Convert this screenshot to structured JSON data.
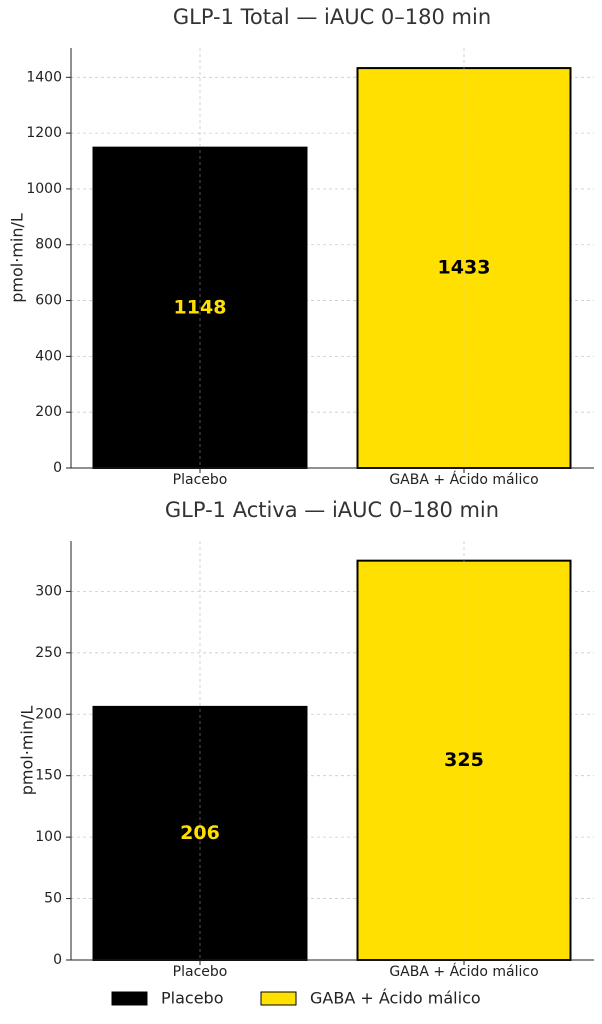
{
  "chart_data": [
    {
      "type": "bar",
      "title": "GLP-1 Total — iAUC 0–180 min",
      "y_label": "pmol·min/L",
      "categories": [
        "Placebo",
        "GABA + Ácido málico"
      ],
      "values": [
        1148,
        1433
      ],
      "colors": [
        "#000000",
        "#ffe000"
      ],
      "value_label_colors": [
        "#ffe000",
        "#000000"
      ],
      "ylim": [
        0,
        1505
      ],
      "yticks": [
        0,
        200,
        400,
        600,
        800,
        1000,
        1200,
        1400
      ],
      "grid": true
    },
    {
      "type": "bar",
      "title": "GLP-1 Activa — iAUC 0–180 min",
      "y_label": "pmol·min/L",
      "categories": [
        "Placebo",
        "GABA + Ácido málico"
      ],
      "values": [
        206,
        325
      ],
      "colors": [
        "#000000",
        "#ffe000"
      ],
      "value_label_colors": [
        "#ffe000",
        "#000000"
      ],
      "ylim": [
        0,
        341
      ],
      "yticks": [
        0,
        50,
        100,
        150,
        200,
        250,
        300
      ],
      "grid": true
    }
  ]
}
